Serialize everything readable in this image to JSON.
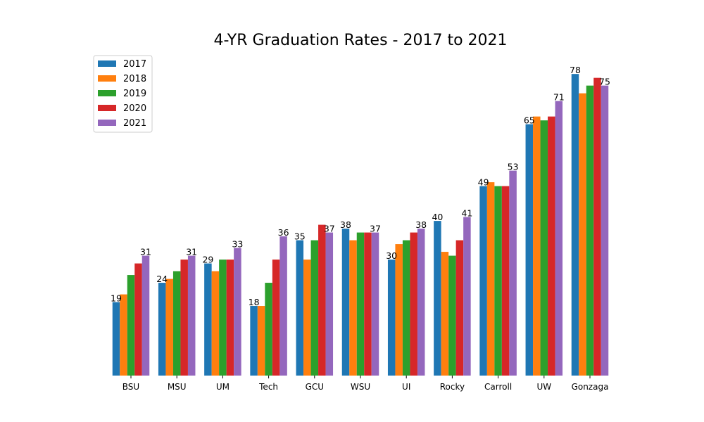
{
  "chart_data": {
    "type": "bar",
    "title": "4-YR Graduation Rates - 2017 to 2021",
    "xlabel": "",
    "ylabel": "",
    "ylim": [
      0,
      80
    ],
    "grid": false,
    "legend_position": "top-left",
    "categories": [
      "BSU",
      "MSU",
      "UM",
      "Tech",
      "GCU",
      "WSU",
      "UI",
      "Rocky",
      "Carroll",
      "UW",
      "Gonzaga"
    ],
    "series": [
      {
        "name": "2017",
        "color": "#1f77b4",
        "values": [
          19,
          24,
          29,
          18,
          35,
          38,
          30,
          40,
          49,
          65,
          78
        ]
      },
      {
        "name": "2018",
        "color": "#ff7f0e",
        "values": [
          21,
          25,
          27,
          18,
          30,
          35,
          34,
          32,
          50,
          67,
          73
        ]
      },
      {
        "name": "2019",
        "color": "#2ca02c",
        "values": [
          26,
          27,
          30,
          24,
          35,
          37,
          35,
          31,
          49,
          66,
          75
        ]
      },
      {
        "name": "2020",
        "color": "#d62728",
        "values": [
          29,
          30,
          30,
          30,
          39,
          37,
          37,
          35,
          49,
          67,
          77
        ]
      },
      {
        "name": "2021",
        "color": "#9467bd",
        "values": [
          31,
          31,
          33,
          36,
          37,
          37,
          38,
          41,
          53,
          71,
          75
        ]
      }
    ],
    "data_labels": [
      {
        "series": "2017",
        "indices": [
          0,
          1,
          2,
          3,
          4,
          5,
          6,
          7,
          8,
          9,
          10
        ]
      },
      {
        "series": "2021",
        "indices": [
          0,
          1,
          2,
          3,
          4,
          5,
          6,
          7,
          8,
          9,
          10
        ]
      }
    ]
  }
}
